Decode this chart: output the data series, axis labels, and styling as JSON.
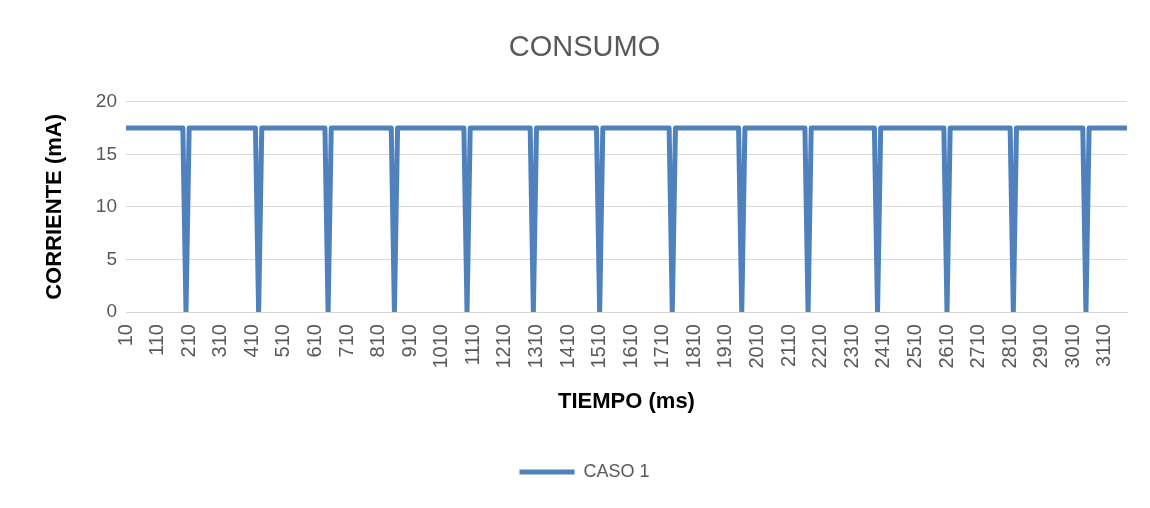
{
  "chart_data": {
    "type": "line",
    "title": "CONSUMO",
    "xlabel": "TIEMPO (ms)",
    "ylabel": "CORRIENTE (mA)",
    "x": [
      10,
      190,
      200,
      210,
      420,
      430,
      440,
      640,
      650,
      660,
      850,
      860,
      870,
      1080,
      1090,
      1100,
      1290,
      1300,
      1310,
      1500,
      1510,
      1520,
      1730,
      1740,
      1750,
      1950,
      1960,
      1970,
      2160,
      2170,
      2180,
      2380,
      2390,
      2400,
      2600,
      2610,
      2620,
      2810,
      2820,
      2830,
      3040,
      3050,
      3060,
      3180
    ],
    "series": [
      {
        "name": "CASO 1",
        "color": "#4f81bd",
        "values": [
          17.5,
          17.5,
          0,
          17.5,
          17.5,
          0,
          17.5,
          17.5,
          0,
          17.5,
          17.5,
          0,
          17.5,
          17.5,
          0,
          17.5,
          17.5,
          0,
          17.5,
          17.5,
          0,
          17.5,
          17.5,
          0,
          17.5,
          17.5,
          0,
          17.5,
          17.5,
          0,
          17.5,
          17.5,
          0,
          17.5,
          17.5,
          0,
          17.5,
          17.5,
          0,
          17.5,
          17.5,
          0,
          17.5,
          17.5
        ]
      }
    ],
    "xlim": [
      10,
      3180
    ],
    "xticks": [
      10,
      110,
      210,
      310,
      410,
      510,
      610,
      710,
      810,
      910,
      1010,
      1110,
      1210,
      1310,
      1410,
      1510,
      1610,
      1710,
      1810,
      1910,
      2010,
      2110,
      2210,
      2310,
      2410,
      2510,
      2610,
      2710,
      2810,
      2910,
      3010,
      3110
    ],
    "ylim": [
      0,
      20
    ],
    "yticks": [
      0,
      5,
      10,
      15,
      20
    ],
    "grid": "y",
    "legend": "bottom",
    "marker": "none",
    "line_style": "solid"
  }
}
